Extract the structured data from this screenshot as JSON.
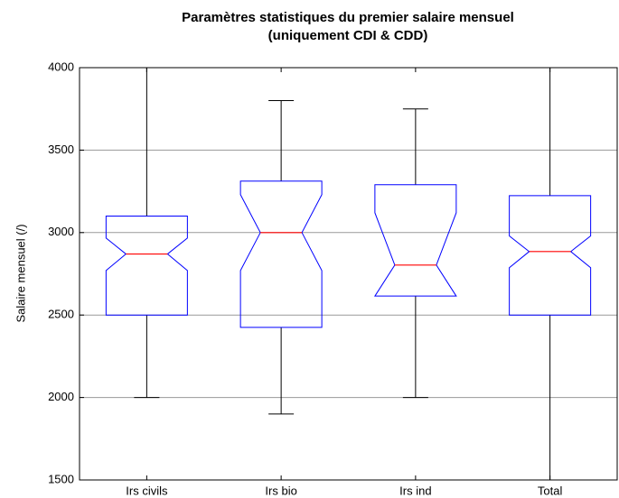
{
  "chart_data": {
    "type": "box",
    "title": [
      "Paramètres statistiques du premier salaire mensuel",
      "(uniquement CDI & CDD)"
    ],
    "y_label": "Salaire mensuel (/)",
    "categories": [
      "Irs civils",
      "Irs bio",
      "Irs ind",
      "Total"
    ],
    "boxes": [
      {
        "min": 2000,
        "q1": 2500,
        "notch_low": 2770,
        "median": 2870,
        "notch_high": 2967,
        "q3": 3100,
        "max": 4000
      },
      {
        "min": 1900,
        "q1": 2425,
        "notch_low": 2770,
        "median": 3000,
        "notch_high": 3230,
        "q3": 3312,
        "max": 3800
      },
      {
        "min": 2000,
        "q1": 2615,
        "notch_low": 2615,
        "median": 2803,
        "notch_high": 3120,
        "q3": 3290,
        "max": 3750
      },
      {
        "min": 1500,
        "q1": 2500,
        "notch_low": 2787,
        "median": 2885,
        "notch_high": 2980,
        "q3": 3224,
        "max": 4000
      }
    ],
    "box_color": "#0000ff",
    "median_color": "#ff0000",
    "whisker_color": "#000000",
    "ylim": [
      1500,
      4000
    ],
    "yticks": [
      1500,
      2000,
      2500,
      3000,
      3500,
      4000
    ],
    "grid": true
  }
}
